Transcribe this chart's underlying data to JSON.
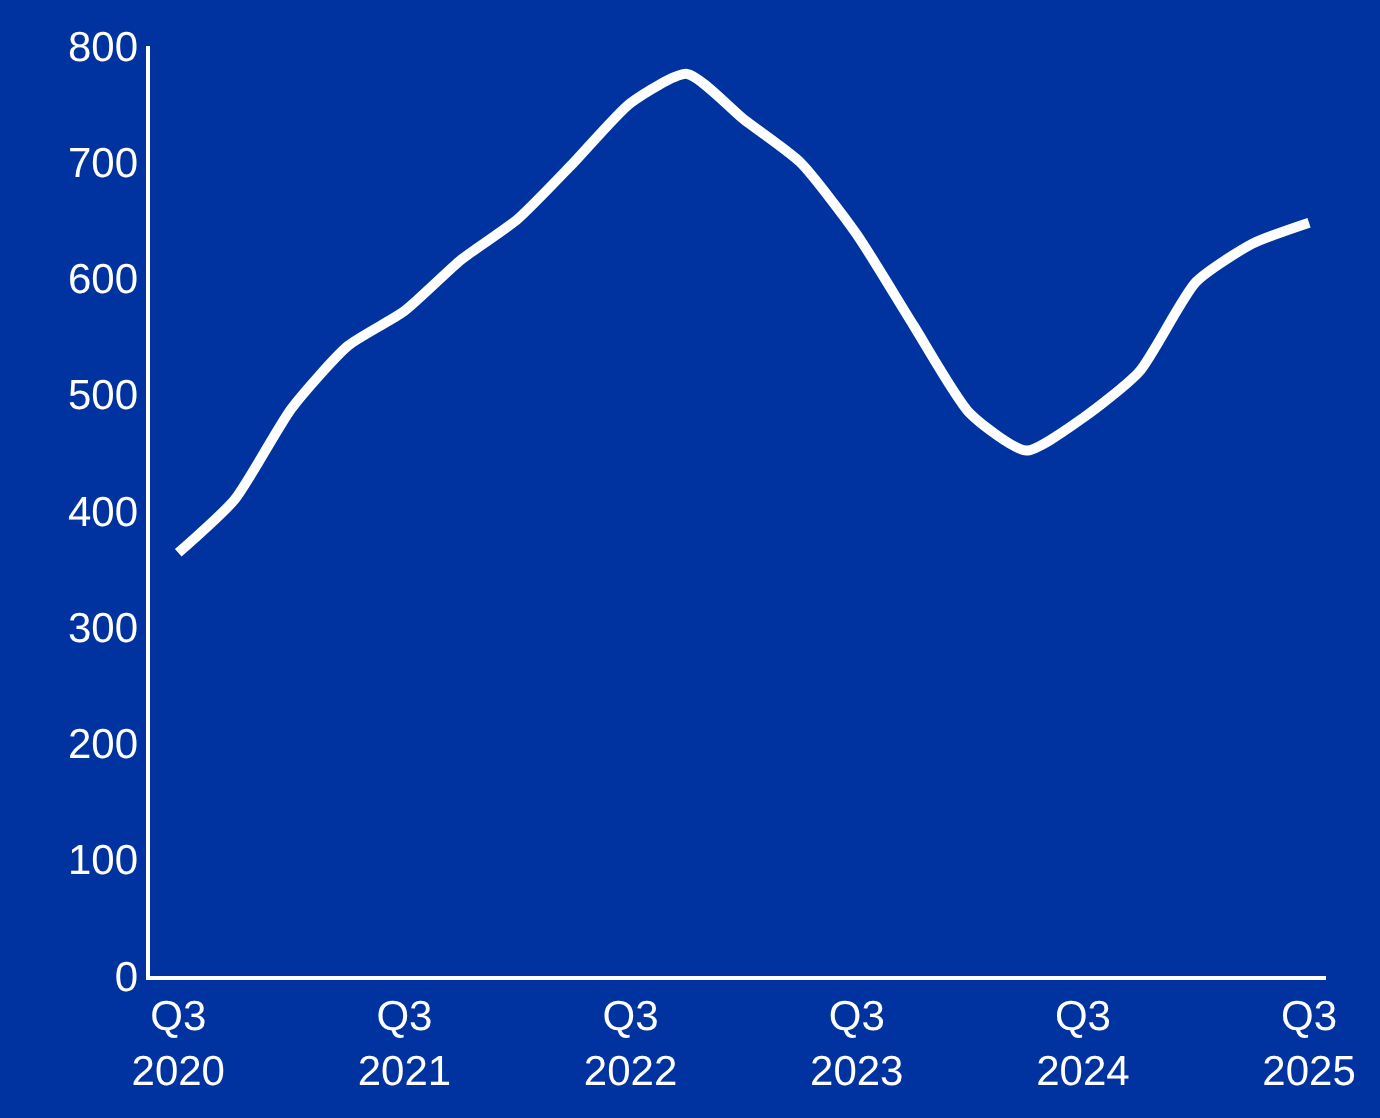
{
  "chart_data": {
    "type": "line",
    "categories": [
      "Q3\n2020",
      null,
      null,
      null,
      "Q3\n2021",
      null,
      null,
      null,
      "Q3\n2022",
      null,
      null,
      null,
      "Q3\n2023",
      null,
      null,
      null,
      "Q3\n2024",
      null,
      null,
      null,
      "Q3\n2025"
    ],
    "series": [
      {
        "color": "#ffffff",
        "values": [
          364,
          410,
          488,
          542,
          572,
          616,
          651,
          700,
          751,
          776,
          737,
          700,
          638,
          560,
          484,
          452,
          480,
          520,
          597,
          630,
          648
        ]
      }
    ],
    "ylim": [
      0,
      800
    ],
    "yticks": [
      0,
      100,
      200,
      300,
      400,
      500,
      600,
      700,
      800
    ],
    "grid": false,
    "marker": "none",
    "line_style": "solid"
  }
}
